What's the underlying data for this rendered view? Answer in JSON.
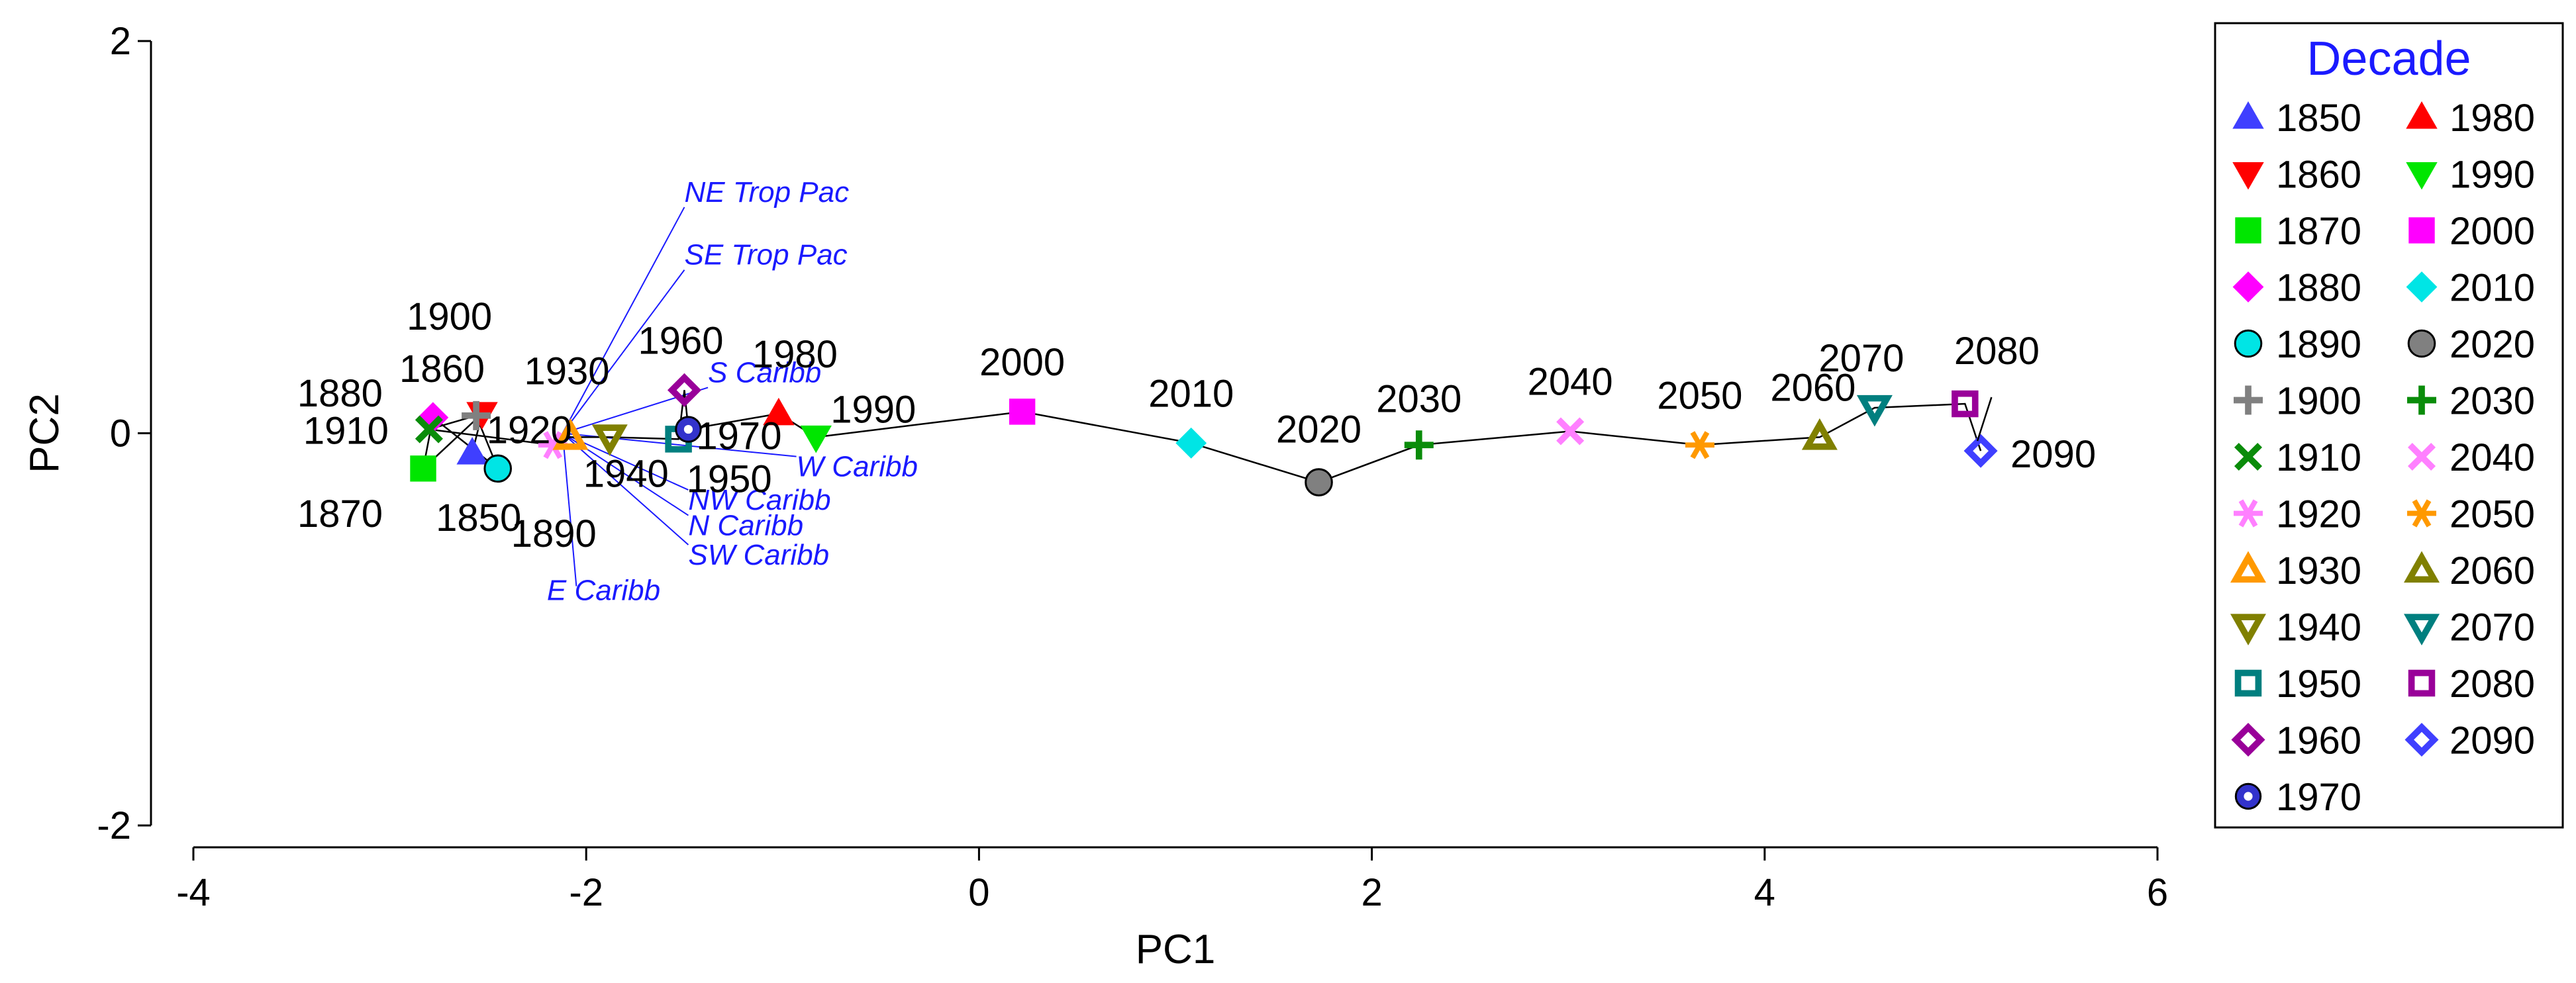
{
  "chart_data": {
    "type": "scatter",
    "xlabel": "PC1",
    "ylabel": "PC2",
    "xlim": [
      -4,
      6
    ],
    "ylim": [
      -2,
      2
    ],
    "xticks": [
      "-4",
      "-2",
      "0",
      "2",
      "4",
      "6"
    ],
    "yticks": [
      "-2",
      "0",
      "2"
    ],
    "trajectory": "connected in decade order",
    "points": [
      {
        "decade": "1850",
        "x": -2.58,
        "y": -0.1,
        "marker": "triangle-up",
        "color": "#3f3fff"
      },
      {
        "decade": "1860",
        "x": -2.53,
        "y": 0.1,
        "marker": "triangle-down",
        "color": "#ff0000"
      },
      {
        "decade": "1870",
        "x": -2.83,
        "y": -0.18,
        "marker": "square",
        "color": "#00e600"
      },
      {
        "decade": "1880",
        "x": -2.78,
        "y": 0.08,
        "marker": "diamond",
        "color": "#ff00ff"
      },
      {
        "decade": "1890",
        "x": -2.45,
        "y": -0.18,
        "marker": "circle",
        "color": "#00e5e5"
      },
      {
        "decade": "1900",
        "x": -2.56,
        "y": 0.09,
        "marker": "plus",
        "color": "#808080"
      },
      {
        "decade": "1910",
        "x": -2.8,
        "y": 0.02,
        "marker": "x",
        "color": "#0a8c0a"
      },
      {
        "decade": "1920",
        "x": -2.17,
        "y": -0.06,
        "marker": "asterisk",
        "color": "#ff80ff"
      },
      {
        "decade": "1930",
        "x": -2.08,
        "y": -0.02,
        "marker": "triangle-up-open",
        "color": "#ff9900"
      },
      {
        "decade": "1940",
        "x": -1.88,
        "y": -0.02,
        "marker": "triangle-down-open",
        "color": "#808000"
      },
      {
        "decade": "1950",
        "x": -1.53,
        "y": -0.03,
        "marker": "square-open",
        "color": "#007f7f"
      },
      {
        "decade": "1960",
        "x": -1.5,
        "y": 0.22,
        "marker": "diamond-open",
        "color": "#990099"
      },
      {
        "decade": "1970",
        "x": -1.48,
        "y": 0.02,
        "marker": "circle-dot",
        "color": "#3333cc"
      },
      {
        "decade": "1980",
        "x": -1.02,
        "y": 0.1,
        "marker": "triangle-up",
        "color": "#ff0000"
      },
      {
        "decade": "1990",
        "x": -0.83,
        "y": -0.02,
        "marker": "triangle-down",
        "color": "#00e600"
      },
      {
        "decade": "2000",
        "x": 0.22,
        "y": 0.11,
        "marker": "square",
        "color": "#ff00ff"
      },
      {
        "decade": "2010",
        "x": 1.08,
        "y": -0.05,
        "marker": "diamond",
        "color": "#00e5e5"
      },
      {
        "decade": "2020",
        "x": 1.73,
        "y": -0.25,
        "marker": "circle",
        "color": "#808080"
      },
      {
        "decade": "2030",
        "x": 2.24,
        "y": -0.06,
        "marker": "plus",
        "color": "#0a8c0a"
      },
      {
        "decade": "2040",
        "x": 3.01,
        "y": 0.01,
        "marker": "x",
        "color": "#ff80ff"
      },
      {
        "decade": "2050",
        "x": 3.67,
        "y": -0.06,
        "marker": "asterisk",
        "color": "#ff9900"
      },
      {
        "decade": "2060",
        "x": 4.28,
        "y": -0.02,
        "marker": "triangle-up-open",
        "color": "#808000"
      },
      {
        "decade": "2070",
        "x": 4.56,
        "y": 0.13,
        "marker": "triangle-down-open",
        "color": "#007f7f"
      },
      {
        "decade": "2080",
        "x": 5.02,
        "y": 0.15,
        "marker": "square-open",
        "color": "#990099"
      },
      {
        "decade": "2090",
        "x": 5.1,
        "y": -0.09,
        "marker": "diamond-open",
        "color": "#3f3fff"
      }
    ],
    "variable_labels": [
      {
        "label": "NE Trop Pac",
        "x": -1.5,
        "y": 1.18
      },
      {
        "label": "SE Trop Pac",
        "x": -1.5,
        "y": 0.86
      },
      {
        "label": "S Caribb",
        "x": -1.38,
        "y": 0.26
      },
      {
        "label": "W Caribb",
        "x": -0.93,
        "y": -0.22
      },
      {
        "label": "NW Caribb",
        "x": -1.48,
        "y": -0.39
      },
      {
        "label": "N Caribb",
        "x": -1.48,
        "y": -0.52
      },
      {
        "label": "SW Caribb",
        "x": -1.48,
        "y": -0.67
      },
      {
        "label": "E Caribb",
        "x": -2.2,
        "y": -0.85
      }
    ],
    "legend": {
      "title": "Decade",
      "placement": "right, outside plot",
      "columns": [
        [
          "1850",
          "1860",
          "1870",
          "1880",
          "1890",
          "1900",
          "1910",
          "1920",
          "1930",
          "1940",
          "1950",
          "1960",
          "1970"
        ],
        [
          "1980",
          "1990",
          "2000",
          "2010",
          "2020",
          "2030",
          "2040",
          "2050",
          "2060",
          "2070",
          "2080",
          "2090"
        ]
      ]
    },
    "grid": false
  }
}
